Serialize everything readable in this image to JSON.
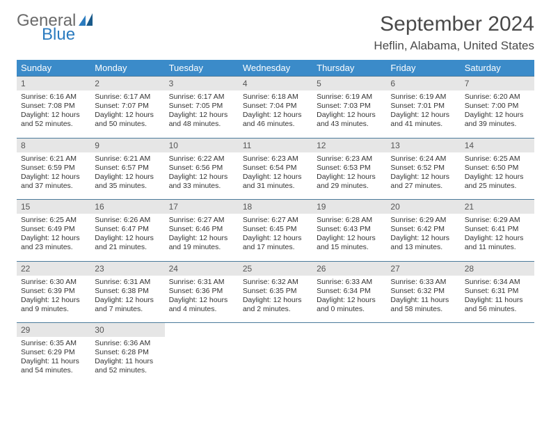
{
  "logo": {
    "text1": "General",
    "text2": "Blue"
  },
  "title": "September 2024",
  "location": "Heflin, Alabama, United States",
  "colors": {
    "header_bg": "#3b8bc9",
    "header_text": "#ffffff",
    "daynum_bg": "#e6e6e6",
    "border": "#4a7a9a",
    "logo_gray": "#6a6a6a",
    "logo_blue": "#2b7bbf"
  },
  "day_headers": [
    "Sunday",
    "Monday",
    "Tuesday",
    "Wednesday",
    "Thursday",
    "Friday",
    "Saturday"
  ],
  "weeks": [
    [
      {
        "n": "1",
        "sr": "Sunrise: 6:16 AM",
        "ss": "Sunset: 7:08 PM",
        "d1": "Daylight: 12 hours",
        "d2": "and 52 minutes."
      },
      {
        "n": "2",
        "sr": "Sunrise: 6:17 AM",
        "ss": "Sunset: 7:07 PM",
        "d1": "Daylight: 12 hours",
        "d2": "and 50 minutes."
      },
      {
        "n": "3",
        "sr": "Sunrise: 6:17 AM",
        "ss": "Sunset: 7:05 PM",
        "d1": "Daylight: 12 hours",
        "d2": "and 48 minutes."
      },
      {
        "n": "4",
        "sr": "Sunrise: 6:18 AM",
        "ss": "Sunset: 7:04 PM",
        "d1": "Daylight: 12 hours",
        "d2": "and 46 minutes."
      },
      {
        "n": "5",
        "sr": "Sunrise: 6:19 AM",
        "ss": "Sunset: 7:03 PM",
        "d1": "Daylight: 12 hours",
        "d2": "and 43 minutes."
      },
      {
        "n": "6",
        "sr": "Sunrise: 6:19 AM",
        "ss": "Sunset: 7:01 PM",
        "d1": "Daylight: 12 hours",
        "d2": "and 41 minutes."
      },
      {
        "n": "7",
        "sr": "Sunrise: 6:20 AM",
        "ss": "Sunset: 7:00 PM",
        "d1": "Daylight: 12 hours",
        "d2": "and 39 minutes."
      }
    ],
    [
      {
        "n": "8",
        "sr": "Sunrise: 6:21 AM",
        "ss": "Sunset: 6:59 PM",
        "d1": "Daylight: 12 hours",
        "d2": "and 37 minutes."
      },
      {
        "n": "9",
        "sr": "Sunrise: 6:21 AM",
        "ss": "Sunset: 6:57 PM",
        "d1": "Daylight: 12 hours",
        "d2": "and 35 minutes."
      },
      {
        "n": "10",
        "sr": "Sunrise: 6:22 AM",
        "ss": "Sunset: 6:56 PM",
        "d1": "Daylight: 12 hours",
        "d2": "and 33 minutes."
      },
      {
        "n": "11",
        "sr": "Sunrise: 6:23 AM",
        "ss": "Sunset: 6:54 PM",
        "d1": "Daylight: 12 hours",
        "d2": "and 31 minutes."
      },
      {
        "n": "12",
        "sr": "Sunrise: 6:23 AM",
        "ss": "Sunset: 6:53 PM",
        "d1": "Daylight: 12 hours",
        "d2": "and 29 minutes."
      },
      {
        "n": "13",
        "sr": "Sunrise: 6:24 AM",
        "ss": "Sunset: 6:52 PM",
        "d1": "Daylight: 12 hours",
        "d2": "and 27 minutes."
      },
      {
        "n": "14",
        "sr": "Sunrise: 6:25 AM",
        "ss": "Sunset: 6:50 PM",
        "d1": "Daylight: 12 hours",
        "d2": "and 25 minutes."
      }
    ],
    [
      {
        "n": "15",
        "sr": "Sunrise: 6:25 AM",
        "ss": "Sunset: 6:49 PM",
        "d1": "Daylight: 12 hours",
        "d2": "and 23 minutes."
      },
      {
        "n": "16",
        "sr": "Sunrise: 6:26 AM",
        "ss": "Sunset: 6:47 PM",
        "d1": "Daylight: 12 hours",
        "d2": "and 21 minutes."
      },
      {
        "n": "17",
        "sr": "Sunrise: 6:27 AM",
        "ss": "Sunset: 6:46 PM",
        "d1": "Daylight: 12 hours",
        "d2": "and 19 minutes."
      },
      {
        "n": "18",
        "sr": "Sunrise: 6:27 AM",
        "ss": "Sunset: 6:45 PM",
        "d1": "Daylight: 12 hours",
        "d2": "and 17 minutes."
      },
      {
        "n": "19",
        "sr": "Sunrise: 6:28 AM",
        "ss": "Sunset: 6:43 PM",
        "d1": "Daylight: 12 hours",
        "d2": "and 15 minutes."
      },
      {
        "n": "20",
        "sr": "Sunrise: 6:29 AM",
        "ss": "Sunset: 6:42 PM",
        "d1": "Daylight: 12 hours",
        "d2": "and 13 minutes."
      },
      {
        "n": "21",
        "sr": "Sunrise: 6:29 AM",
        "ss": "Sunset: 6:41 PM",
        "d1": "Daylight: 12 hours",
        "d2": "and 11 minutes."
      }
    ],
    [
      {
        "n": "22",
        "sr": "Sunrise: 6:30 AM",
        "ss": "Sunset: 6:39 PM",
        "d1": "Daylight: 12 hours",
        "d2": "and 9 minutes."
      },
      {
        "n": "23",
        "sr": "Sunrise: 6:31 AM",
        "ss": "Sunset: 6:38 PM",
        "d1": "Daylight: 12 hours",
        "d2": "and 7 minutes."
      },
      {
        "n": "24",
        "sr": "Sunrise: 6:31 AM",
        "ss": "Sunset: 6:36 PM",
        "d1": "Daylight: 12 hours",
        "d2": "and 4 minutes."
      },
      {
        "n": "25",
        "sr": "Sunrise: 6:32 AM",
        "ss": "Sunset: 6:35 PM",
        "d1": "Daylight: 12 hours",
        "d2": "and 2 minutes."
      },
      {
        "n": "26",
        "sr": "Sunrise: 6:33 AM",
        "ss": "Sunset: 6:34 PM",
        "d1": "Daylight: 12 hours",
        "d2": "and 0 minutes."
      },
      {
        "n": "27",
        "sr": "Sunrise: 6:33 AM",
        "ss": "Sunset: 6:32 PM",
        "d1": "Daylight: 11 hours",
        "d2": "and 58 minutes."
      },
      {
        "n": "28",
        "sr": "Sunrise: 6:34 AM",
        "ss": "Sunset: 6:31 PM",
        "d1": "Daylight: 11 hours",
        "d2": "and 56 minutes."
      }
    ],
    [
      {
        "n": "29",
        "sr": "Sunrise: 6:35 AM",
        "ss": "Sunset: 6:29 PM",
        "d1": "Daylight: 11 hours",
        "d2": "and 54 minutes."
      },
      {
        "n": "30",
        "sr": "Sunrise: 6:36 AM",
        "ss": "Sunset: 6:28 PM",
        "d1": "Daylight: 11 hours",
        "d2": "and 52 minutes."
      },
      null,
      null,
      null,
      null,
      null
    ]
  ]
}
